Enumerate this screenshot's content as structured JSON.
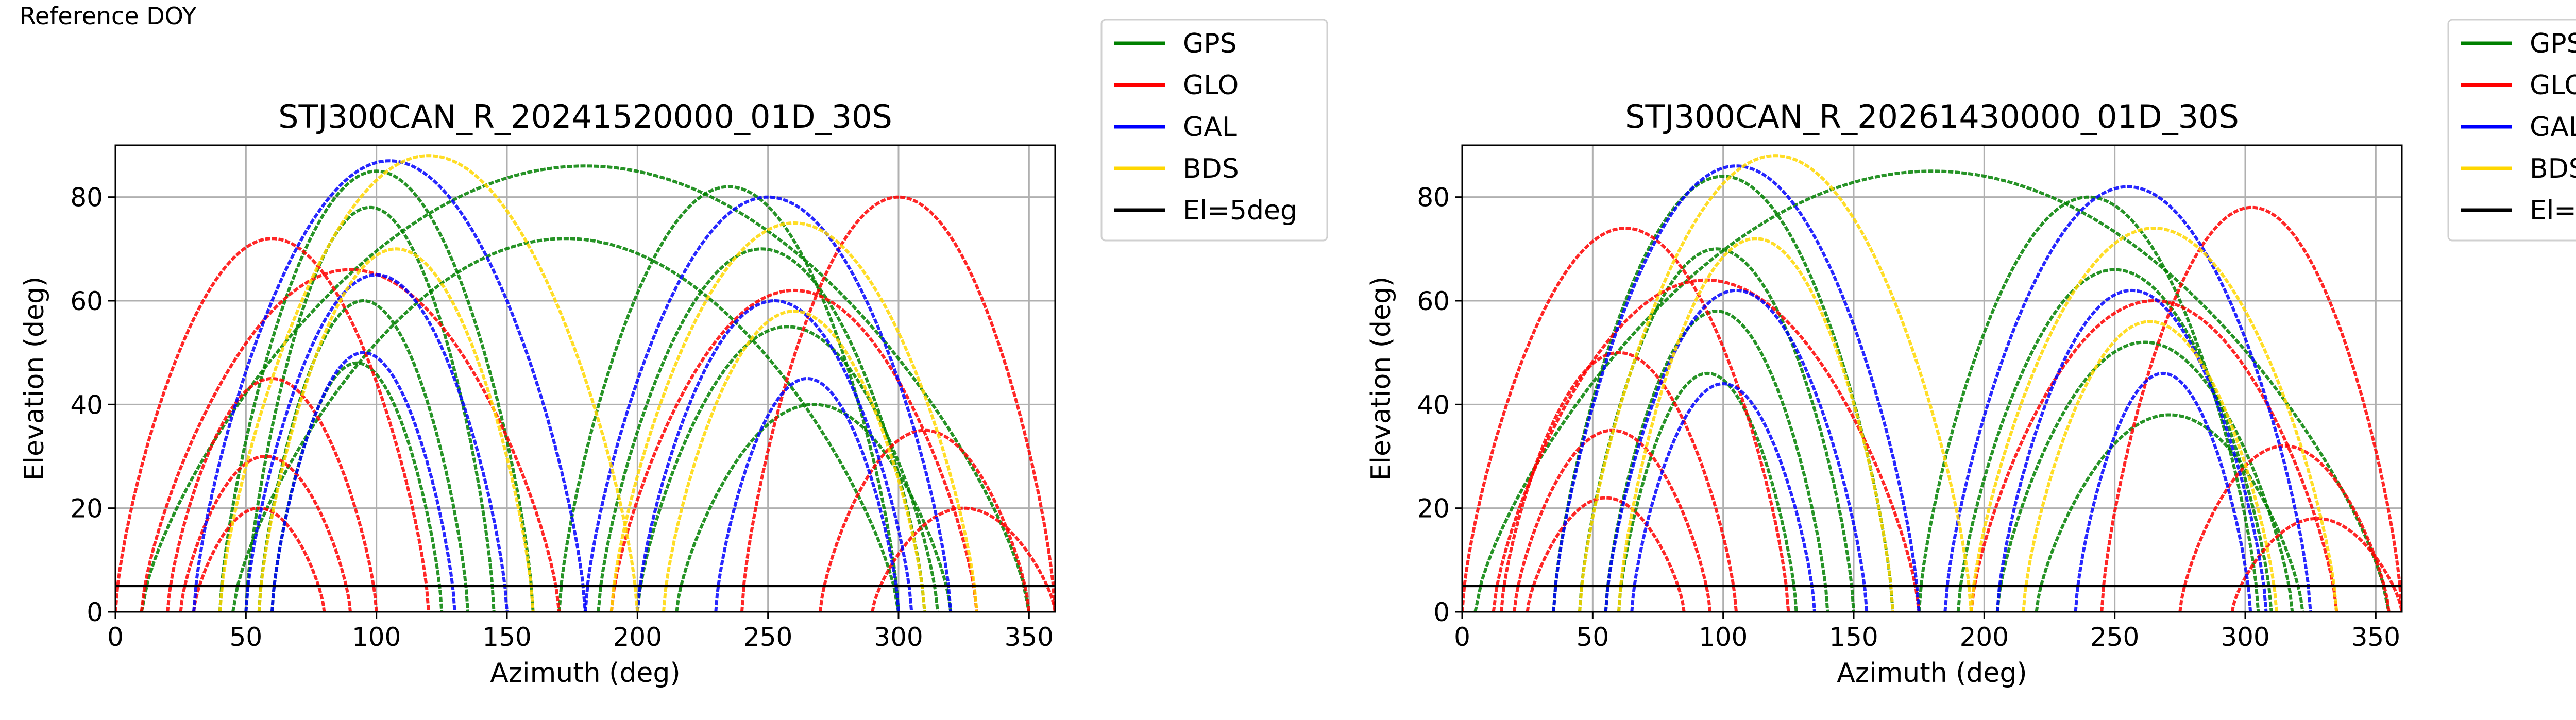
{
  "figure": {
    "top_label": "Reference DOY"
  },
  "legend": [
    {
      "name": "GPS",
      "color": "#008000"
    },
    {
      "name": "GLO",
      "color": "#ff0000"
    },
    {
      "name": "GAL",
      "color": "#0000ff"
    },
    {
      "name": "BDS",
      "color": "#ffd700"
    },
    {
      "name": "El=5deg",
      "color": "#000000"
    }
  ],
  "chart_data": [
    {
      "type": "scatter",
      "title": "STJ300CAN_R_20241520000_01D_30S",
      "xlabel": "Azimuth (deg)",
      "ylabel": "Elevation (deg)",
      "xlim": [
        0,
        360
      ],
      "ylim": [
        0,
        90
      ],
      "xticks": [
        0,
        50,
        100,
        150,
        200,
        250,
        300,
        350
      ],
      "yticks": [
        0,
        20,
        40,
        60,
        80
      ],
      "grid": true,
      "legend_placement": "outside-top-right",
      "reference_line": {
        "name": "El=5deg",
        "y": 5
      },
      "series": [
        {
          "name": "GPS",
          "color": "#008000",
          "passes": [
            {
              "az_rise": 40,
              "az_set": 160,
              "max_el": 85
            },
            {
              "az_rise": 45,
              "az_set": 300,
              "max_el": 72
            },
            {
              "az_rise": 50,
              "az_set": 145,
              "max_el": 78
            },
            {
              "az_rise": 55,
              "az_set": 135,
              "max_el": 60
            },
            {
              "az_rise": 60,
              "az_set": 125,
              "max_el": 48
            },
            {
              "az_rise": 170,
              "az_set": 300,
              "max_el": 82
            },
            {
              "az_rise": 185,
              "az_set": 310,
              "max_el": 70
            },
            {
              "az_rise": 200,
              "az_set": 315,
              "max_el": 55
            },
            {
              "az_rise": 215,
              "az_set": 320,
              "max_el": 40
            },
            {
              "az_rise": 10,
              "az_set": 350,
              "max_el": 86
            }
          ]
        },
        {
          "name": "GLO",
          "color": "#ff0000",
          "passes": [
            {
              "az_rise": 0,
              "az_set": 120,
              "max_el": 72
            },
            {
              "az_rise": 20,
              "az_set": 100,
              "max_el": 45
            },
            {
              "az_rise": 25,
              "az_set": 90,
              "max_el": 30
            },
            {
              "az_rise": 30,
              "az_set": 80,
              "max_el": 20
            },
            {
              "az_rise": 190,
              "az_set": 330,
              "max_el": 62
            },
            {
              "az_rise": 240,
              "az_set": 360,
              "max_el": 80
            },
            {
              "az_rise": 270,
              "az_set": 350,
              "max_el": 35
            },
            {
              "az_rise": 290,
              "az_set": 360,
              "max_el": 20
            },
            {
              "az_rise": 10,
              "az_set": 170,
              "max_el": 66
            }
          ]
        },
        {
          "name": "GAL",
          "color": "#0000ff",
          "passes": [
            {
              "az_rise": 30,
              "az_set": 180,
              "max_el": 87
            },
            {
              "az_rise": 50,
              "az_set": 150,
              "max_el": 65
            },
            {
              "az_rise": 60,
              "az_set": 130,
              "max_el": 50
            },
            {
              "az_rise": 180,
              "az_set": 320,
              "max_el": 80
            },
            {
              "az_rise": 200,
              "az_set": 305,
              "max_el": 60
            },
            {
              "az_rise": 230,
              "az_set": 300,
              "max_el": 45
            }
          ]
        },
        {
          "name": "BDS",
          "color": "#ffd700",
          "passes": [
            {
              "az_rise": 40,
              "az_set": 200,
              "max_el": 88
            },
            {
              "az_rise": 55,
              "az_set": 160,
              "max_el": 70
            },
            {
              "az_rise": 190,
              "az_set": 330,
              "max_el": 75
            },
            {
              "az_rise": 210,
              "az_set": 310,
              "max_el": 58
            }
          ]
        }
      ]
    },
    {
      "type": "scatter",
      "title": "STJ300CAN_R_20261430000_01D_30S",
      "xlabel": "Azimuth (deg)",
      "ylabel": "Elevation (deg)",
      "xlim": [
        0,
        360
      ],
      "ylim": [
        0,
        90
      ],
      "xticks": [
        0,
        50,
        100,
        150,
        200,
        250,
        300,
        350
      ],
      "yticks": [
        0,
        20,
        40,
        60,
        80
      ],
      "grid": true,
      "legend_placement": "outside-top-right",
      "reference_line": {
        "name": "El=5deg",
        "y": 5
      },
      "series": [
        {
          "name": "GPS",
          "color": "#008000",
          "passes": [
            {
              "az_rise": 35,
              "az_set": 165,
              "max_el": 84
            },
            {
              "az_rise": 45,
              "az_set": 150,
              "max_el": 70
            },
            {
              "az_rise": 55,
              "az_set": 140,
              "max_el": 58
            },
            {
              "az_rise": 60,
              "az_set": 128,
              "max_el": 46
            },
            {
              "az_rise": 175,
              "az_set": 305,
              "max_el": 80
            },
            {
              "az_rise": 190,
              "az_set": 310,
              "max_el": 66
            },
            {
              "az_rise": 205,
              "az_set": 318,
              "max_el": 52
            },
            {
              "az_rise": 220,
              "az_set": 322,
              "max_el": 38
            },
            {
              "az_rise": 5,
              "az_set": 355,
              "max_el": 85
            }
          ]
        },
        {
          "name": "GLO",
          "color": "#ff0000",
          "passes": [
            {
              "az_rise": 0,
              "az_set": 125,
              "max_el": 74
            },
            {
              "az_rise": 15,
              "az_set": 105,
              "max_el": 50
            },
            {
              "az_rise": 20,
              "az_set": 95,
              "max_el": 35
            },
            {
              "az_rise": 25,
              "az_set": 85,
              "max_el": 22
            },
            {
              "az_rise": 195,
              "az_set": 335,
              "max_el": 60
            },
            {
              "az_rise": 245,
              "az_set": 360,
              "max_el": 78
            },
            {
              "az_rise": 275,
              "az_set": 355,
              "max_el": 32
            },
            {
              "az_rise": 295,
              "az_set": 360,
              "max_el": 18
            },
            {
              "az_rise": 12,
              "az_set": 175,
              "max_el": 64
            }
          ]
        },
        {
          "name": "GAL",
          "color": "#0000ff",
          "passes": [
            {
              "az_rise": 35,
              "az_set": 175,
              "max_el": 86
            },
            {
              "az_rise": 55,
              "az_set": 155,
              "max_el": 62
            },
            {
              "az_rise": 65,
              "az_set": 135,
              "max_el": 44
            },
            {
              "az_rise": 185,
              "az_set": 325,
              "max_el": 82
            },
            {
              "az_rise": 205,
              "az_set": 308,
              "max_el": 62
            },
            {
              "az_rise": 235,
              "az_set": 302,
              "max_el": 46
            }
          ]
        },
        {
          "name": "BDS",
          "color": "#ffd700",
          "passes": [
            {
              "az_rise": 45,
              "az_set": 195,
              "max_el": 88
            },
            {
              "az_rise": 60,
              "az_set": 165,
              "max_el": 72
            },
            {
              "az_rise": 195,
              "az_set": 335,
              "max_el": 74
            },
            {
              "az_rise": 215,
              "az_set": 312,
              "max_el": 56
            }
          ]
        }
      ]
    }
  ]
}
